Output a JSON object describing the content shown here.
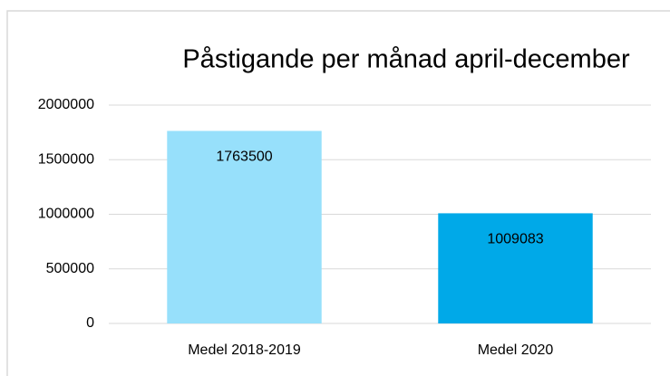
{
  "chart_data": {
    "type": "bar",
    "title": "Påstigande per månad april-december",
    "categories": [
      "Medel 2018-2019",
      "Medel 2020"
    ],
    "values": [
      1763500,
      1009083
    ],
    "colors": [
      "#97e0fb",
      "#00a9e8"
    ],
    "ylim": [
      0,
      2000000
    ],
    "yticks": [
      0,
      500000,
      1000000,
      1500000,
      2000000
    ],
    "grid": true
  }
}
